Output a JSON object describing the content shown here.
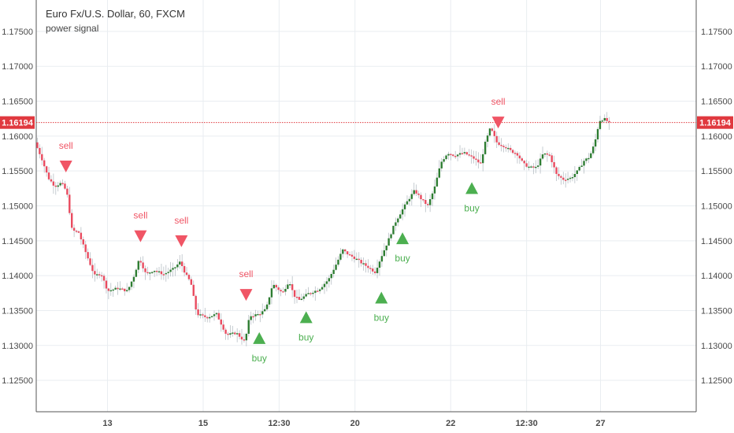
{
  "chart_data": {
    "type": "candlestick",
    "title": "Euro Fx/U.S. Dollar, 60, FXCM",
    "subtitle": "power signal",
    "current_price_label": "1.16194",
    "current_price": 1.16194,
    "ylim": [
      1.1205,
      1.1795
    ],
    "y_ticks": [
      "1.12500",
      "1.13000",
      "1.13500",
      "1.14000",
      "1.14500",
      "1.15000",
      "1.15500",
      "1.16000",
      "1.16500",
      "1.17000",
      "1.17500"
    ],
    "x_ticks": [
      {
        "label": "13",
        "pos": 0.108
      },
      {
        "label": "15",
        "pos": 0.253
      },
      {
        "label": "12:30",
        "pos": 0.368
      },
      {
        "label": "20",
        "pos": 0.483
      },
      {
        "label": "22",
        "pos": 0.628
      },
      {
        "label": "12:30",
        "pos": 0.743
      },
      {
        "label": "27",
        "pos": 0.855
      }
    ],
    "waypoints": [
      {
        "t": 0.0,
        "p": 1.1591
      },
      {
        "t": 0.01,
        "p": 1.1568
      },
      {
        "t": 0.02,
        "p": 1.154
      },
      {
        "t": 0.03,
        "p": 1.1528
      },
      {
        "t": 0.04,
        "p": 1.1533
      },
      {
        "t": 0.048,
        "p": 1.152
      },
      {
        "t": 0.056,
        "p": 1.1465
      },
      {
        "t": 0.066,
        "p": 1.1462
      },
      {
        "t": 0.078,
        "p": 1.143
      },
      {
        "t": 0.09,
        "p": 1.14
      },
      {
        "t": 0.1,
        "p": 1.1403
      },
      {
        "t": 0.11,
        "p": 1.1378
      },
      {
        "t": 0.125,
        "p": 1.1382
      },
      {
        "t": 0.14,
        "p": 1.1378
      },
      {
        "t": 0.15,
        "p": 1.14
      },
      {
        "t": 0.158,
        "p": 1.1425
      },
      {
        "t": 0.168,
        "p": 1.1402
      },
      {
        "t": 0.18,
        "p": 1.1408
      },
      {
        "t": 0.195,
        "p": 1.1402
      },
      {
        "t": 0.21,
        "p": 1.141
      },
      {
        "t": 0.22,
        "p": 1.142
      },
      {
        "t": 0.228,
        "p": 1.1402
      },
      {
        "t": 0.236,
        "p": 1.139
      },
      {
        "t": 0.245,
        "p": 1.1345
      },
      {
        "t": 0.26,
        "p": 1.134
      },
      {
        "t": 0.275,
        "p": 1.1345
      },
      {
        "t": 0.29,
        "p": 1.1315
      },
      {
        "t": 0.305,
        "p": 1.1318
      },
      {
        "t": 0.318,
        "p": 1.1305
      },
      {
        "t": 0.325,
        "p": 1.1342
      },
      {
        "t": 0.34,
        "p": 1.1345
      },
      {
        "t": 0.35,
        "p": 1.1352
      },
      {
        "t": 0.36,
        "p": 1.1388
      },
      {
        "t": 0.375,
        "p": 1.1375
      },
      {
        "t": 0.385,
        "p": 1.1393
      },
      {
        "t": 0.392,
        "p": 1.1372
      },
      {
        "t": 0.4,
        "p": 1.1365
      },
      {
        "t": 0.415,
        "p": 1.1375
      },
      {
        "t": 0.43,
        "p": 1.138
      },
      {
        "t": 0.445,
        "p": 1.1395
      },
      {
        "t": 0.458,
        "p": 1.142
      },
      {
        "t": 0.466,
        "p": 1.1437
      },
      {
        "t": 0.475,
        "p": 1.143
      },
      {
        "t": 0.485,
        "p": 1.1425
      },
      {
        "t": 0.495,
        "p": 1.1418
      },
      {
        "t": 0.505,
        "p": 1.1412
      },
      {
        "t": 0.515,
        "p": 1.1405
      },
      {
        "t": 0.525,
        "p": 1.1428
      },
      {
        "t": 0.535,
        "p": 1.145
      },
      {
        "t": 0.545,
        "p": 1.1475
      },
      {
        "t": 0.555,
        "p": 1.1492
      },
      {
        "t": 0.565,
        "p": 1.1508
      },
      {
        "t": 0.575,
        "p": 1.1522
      },
      {
        "t": 0.585,
        "p": 1.151
      },
      {
        "t": 0.595,
        "p": 1.15
      },
      {
        "t": 0.605,
        "p": 1.1525
      },
      {
        "t": 0.615,
        "p": 1.1562
      },
      {
        "t": 0.625,
        "p": 1.1576
      },
      {
        "t": 0.635,
        "p": 1.1572
      },
      {
        "t": 0.65,
        "p": 1.1576
      },
      {
        "t": 0.665,
        "p": 1.1568
      },
      {
        "t": 0.675,
        "p": 1.156
      },
      {
        "t": 0.682,
        "p": 1.159
      },
      {
        "t": 0.69,
        "p": 1.1612
      },
      {
        "t": 0.7,
        "p": 1.159
      },
      {
        "t": 0.712,
        "p": 1.1585
      },
      {
        "t": 0.722,
        "p": 1.1578
      },
      {
        "t": 0.73,
        "p": 1.1575
      },
      {
        "t": 0.74,
        "p": 1.156
      },
      {
        "t": 0.75,
        "p": 1.1555
      },
      {
        "t": 0.76,
        "p": 1.1555
      },
      {
        "t": 0.77,
        "p": 1.1575
      },
      {
        "t": 0.78,
        "p": 1.1572
      },
      {
        "t": 0.79,
        "p": 1.1545
      },
      {
        "t": 0.8,
        "p": 1.1538
      },
      {
        "t": 0.812,
        "p": 1.154
      },
      {
        "t": 0.822,
        "p": 1.155
      },
      {
        "t": 0.832,
        "p": 1.1565
      },
      {
        "t": 0.84,
        "p": 1.157
      },
      {
        "t": 0.848,
        "p": 1.159
      },
      {
        "t": 0.855,
        "p": 1.1622
      },
      {
        "t": 0.862,
        "p": 1.1625
      },
      {
        "t": 0.87,
        "p": 1.1619
      }
    ],
    "signals": [
      {
        "type": "sell",
        "label": "sell",
        "t": 0.045,
        "p": 1.1557
      },
      {
        "type": "sell",
        "label": "sell",
        "t": 0.158,
        "p": 1.1457
      },
      {
        "type": "sell",
        "label": "sell",
        "t": 0.22,
        "p": 1.145
      },
      {
        "type": "sell",
        "label": "sell",
        "t": 0.318,
        "p": 1.1373
      },
      {
        "type": "buy",
        "label": "buy",
        "t": 0.338,
        "p": 1.131
      },
      {
        "type": "buy",
        "label": "buy",
        "t": 0.409,
        "p": 1.134
      },
      {
        "type": "buy",
        "label": "buy",
        "t": 0.523,
        "p": 1.1368
      },
      {
        "type": "buy",
        "label": "buy",
        "t": 0.555,
        "p": 1.1453
      },
      {
        "type": "buy",
        "label": "buy",
        "t": 0.66,
        "p": 1.1525
      },
      {
        "type": "sell",
        "label": "sell",
        "t": 0.7,
        "p": 1.162
      }
    ]
  },
  "colors": {
    "up": "#2e7d32",
    "down": "#e94b5f",
    "sell_marker": "#f05565",
    "buy_marker": "#4caf50",
    "grid": "#e9edf1",
    "axis": "#555555",
    "price_line": "#e0393f"
  }
}
